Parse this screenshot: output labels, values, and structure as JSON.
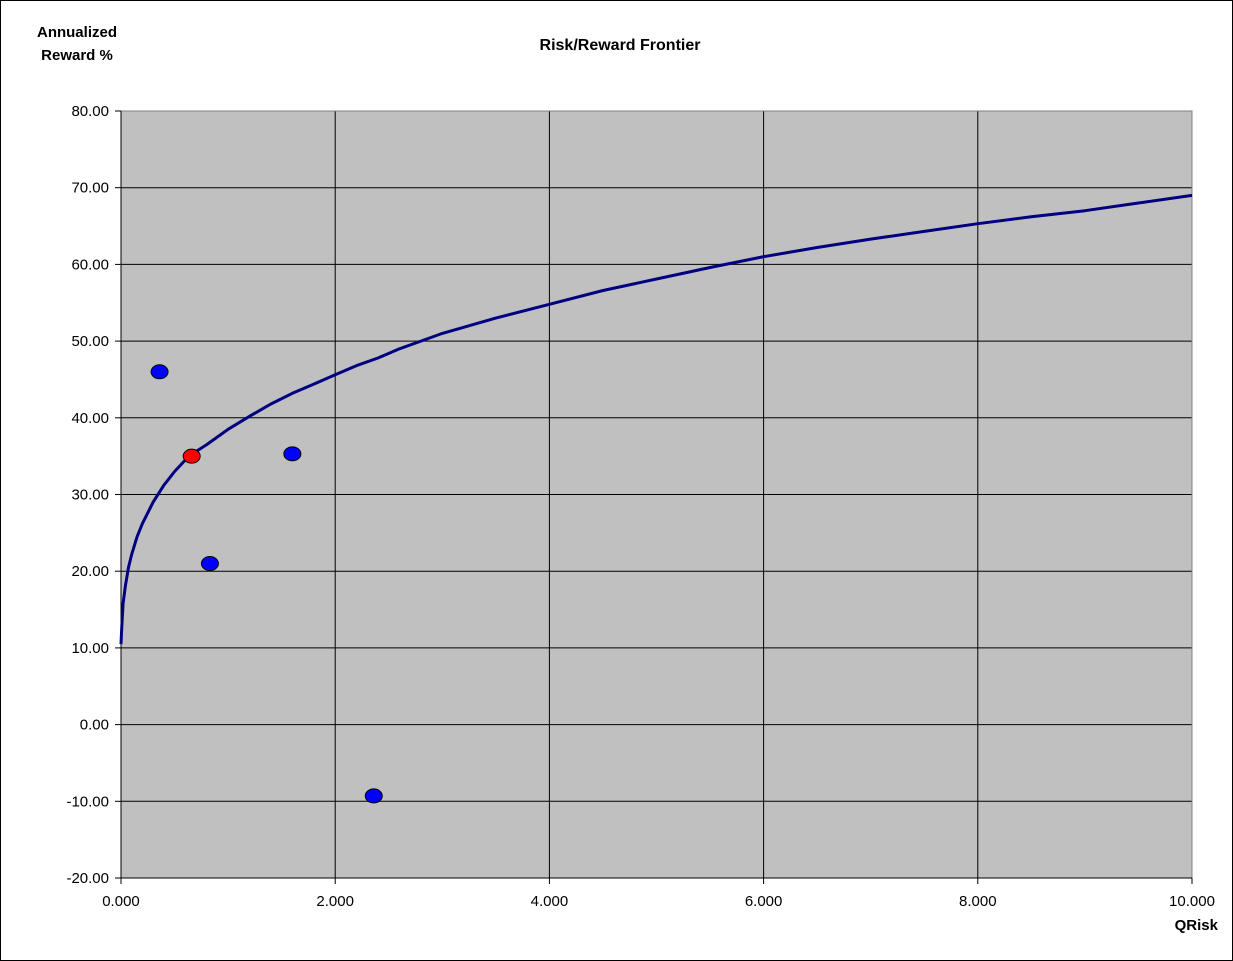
{
  "chart_data": {
    "type": "scatter",
    "title": "Risk/Reward Frontier",
    "ylabel_lines": [
      "Annualized",
      "Reward %"
    ],
    "xlabel": "QRisk",
    "xlim": [
      0,
      10
    ],
    "ylim": [
      -20,
      80
    ],
    "xticks": [
      "0.000",
      "2.000",
      "4.000",
      "6.000",
      "8.000",
      "10.000"
    ],
    "yticks": [
      "80.00",
      "70.00",
      "60.00",
      "50.00",
      "40.00",
      "30.00",
      "20.00",
      "10.00",
      "0.00",
      "-10.00",
      "-20.00"
    ],
    "xtick_values": [
      0,
      2,
      4,
      6,
      8,
      10
    ],
    "ytick_values": [
      80,
      70,
      60,
      50,
      40,
      30,
      20,
      10,
      0,
      -10,
      -20
    ],
    "grid": true,
    "plot_background": "#C0C0C0",
    "frontier": {
      "color": "#000080",
      "x": [
        0.0,
        0.005,
        0.01,
        0.02,
        0.04,
        0.07,
        0.1,
        0.15,
        0.2,
        0.3,
        0.4,
        0.5,
        0.6,
        0.7,
        0.8,
        0.9,
        1.0,
        1.2,
        1.4,
        1.6,
        1.8,
        2.0,
        2.2,
        2.4,
        2.6,
        2.8,
        3.0,
        3.5,
        4.0,
        4.5,
        5.0,
        5.5,
        6.0,
        6.5,
        7.0,
        7.5,
        8.0,
        8.5,
        9.0,
        9.5,
        10.0
      ],
      "y": [
        10.5,
        12.0,
        13.5,
        15.8,
        18.0,
        20.5,
        22.2,
        24.5,
        26.2,
        29.0,
        31.2,
        33.0,
        34.5,
        35.6,
        36.5,
        37.5,
        38.5,
        40.2,
        41.8,
        43.2,
        44.4,
        45.6,
        46.8,
        47.8,
        49.0,
        50.0,
        51.0,
        53.0,
        54.8,
        56.6,
        58.1,
        59.6,
        61.0,
        62.2,
        63.3,
        64.3,
        65.3,
        66.2,
        67.0,
        68.0,
        69.0
      ]
    },
    "points": [
      {
        "x": 0.36,
        "y": 46.0,
        "color": "#0000FF"
      },
      {
        "x": 0.66,
        "y": 35.0,
        "color": "#FF0000"
      },
      {
        "x": 0.83,
        "y": 21.0,
        "color": "#0000FF"
      },
      {
        "x": 1.6,
        "y": 35.3,
        "color": "#0000FF"
      },
      {
        "x": 2.36,
        "y": -9.3,
        "color": "#0000FF"
      }
    ]
  }
}
